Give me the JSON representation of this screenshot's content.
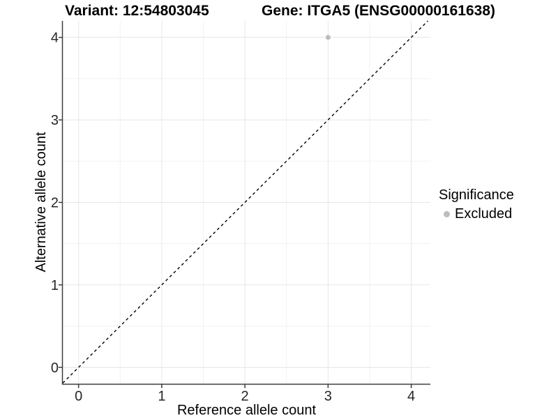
{
  "header": {
    "title_left": "Variant: 12:54803045",
    "title_right": "Gene: ITGA5 (ENSG00000161638)"
  },
  "chart_data": {
    "type": "scatter",
    "title_left": "Variant: 12:54803045",
    "title_right": "Gene: ITGA5 (ENSG00000161638)",
    "xlabel": "Reference allele count",
    "ylabel": "Alternative allele count",
    "xlim": [
      -0.19,
      4.23
    ],
    "ylim": [
      -0.2,
      4.2
    ],
    "xticks": [
      "0",
      "1",
      "2",
      "3",
      "4"
    ],
    "yticks": [
      "0",
      "1",
      "2",
      "3",
      "4"
    ],
    "xtick_values": [
      0,
      1,
      2,
      3,
      4
    ],
    "ytick_values": [
      0,
      1,
      2,
      3,
      4
    ],
    "minor_ticks_x": [
      0.5,
      1.5,
      2.5,
      3.5
    ],
    "minor_ticks_y": [
      0.5,
      1.5,
      2.5,
      3.5
    ],
    "grid": "major+minor",
    "reference_line": {
      "equation": "y = x",
      "style": "dashed",
      "color": "#000000"
    },
    "series": [
      {
        "name": "Excluded",
        "color": "#bdbdbd",
        "points": [
          {
            "x": 3,
            "y": 4
          }
        ]
      }
    ],
    "legend": {
      "title": "Significance",
      "position": "right",
      "entries": [
        {
          "label": "Excluded",
          "color": "#bdbdbd",
          "marker": "circle"
        }
      ]
    }
  },
  "colors": {
    "background": "#ffffff",
    "grid_major": "#e6e6e6",
    "grid_minor": "#f2f2f2",
    "axis_line": "#3c3c3c",
    "tick_text": "#262626",
    "title_text": "#000000",
    "point": "#bdbdbd"
  }
}
